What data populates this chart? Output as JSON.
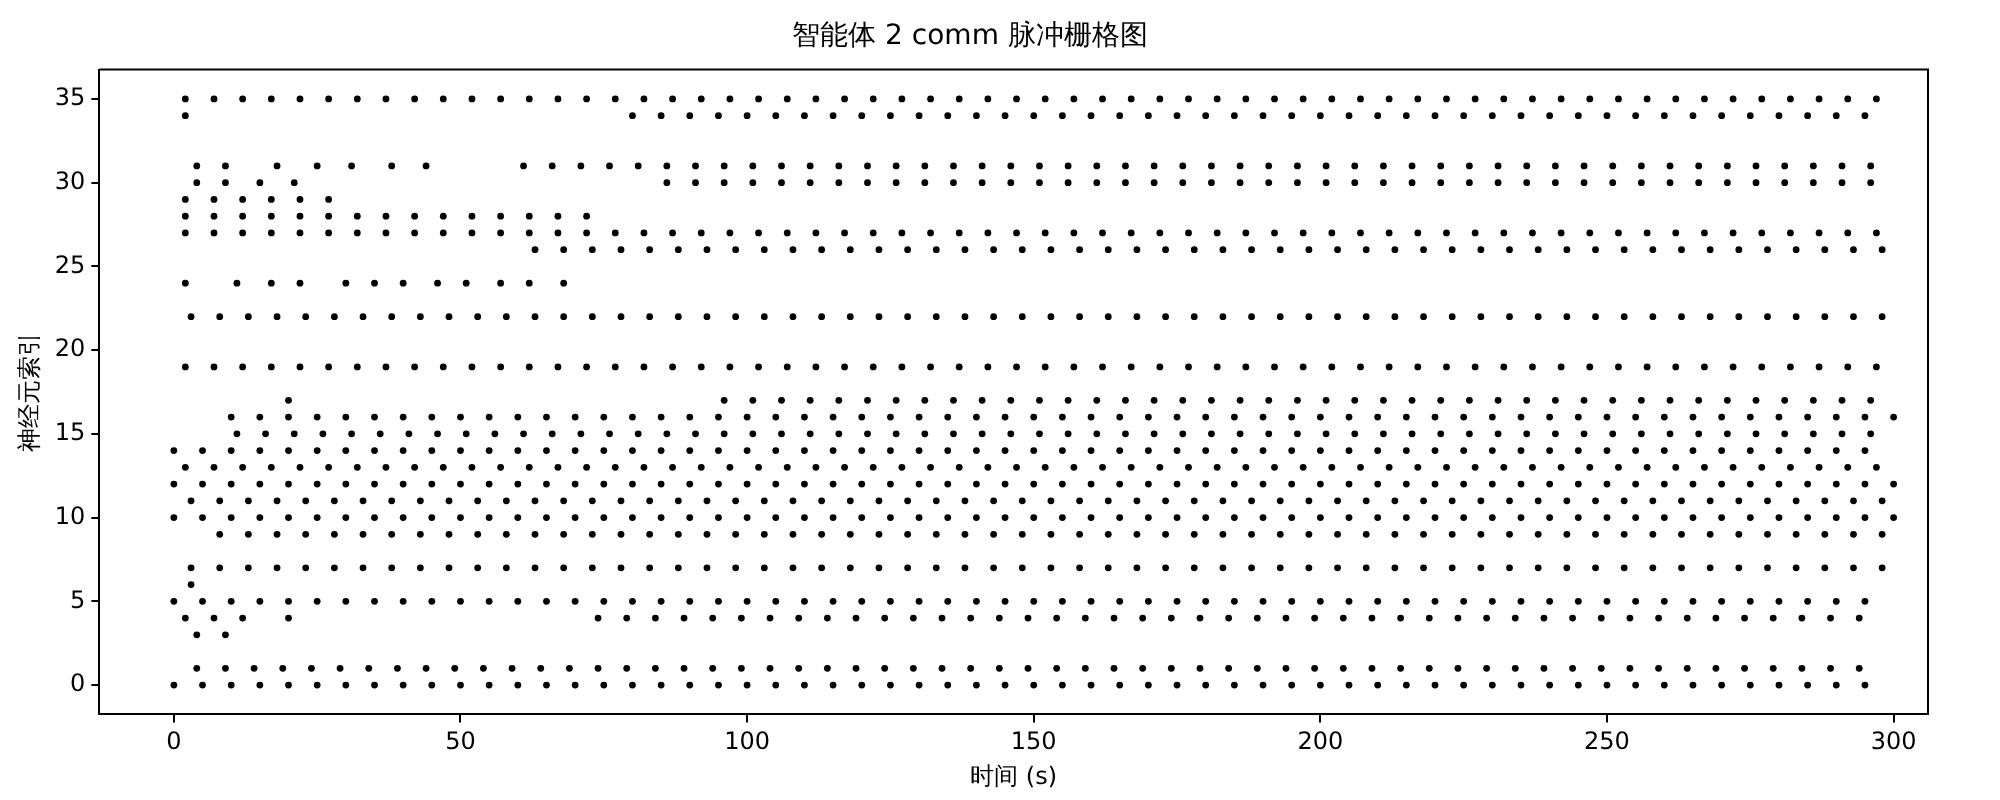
{
  "chart_data": {
    "type": "scatter",
    "title": "智能体 2 comm 脉冲栅格图",
    "xlabel": "时间 (s)",
    "ylabel": "神经元索引",
    "marker": "circle",
    "xlim": [
      -13,
      306
    ],
    "ylim": [
      -1.75,
      36.75
    ],
    "xticks": [
      0,
      50,
      100,
      150,
      200,
      250,
      300
    ],
    "yticks": [
      0,
      5,
      10,
      15,
      20,
      25,
      30,
      35
    ],
    "series": [
      {
        "color": "#000000",
        "x": [
          2,
          7,
          12,
          17,
          22,
          27,
          32,
          37,
          42,
          47,
          52,
          57,
          62,
          67,
          72,
          77,
          82,
          87,
          92,
          97,
          102,
          107,
          112,
          117,
          122,
          127,
          132,
          137,
          142,
          147,
          152,
          157,
          162,
          167,
          172,
          177,
          182,
          187,
          192,
          197,
          202,
          207,
          212,
          217,
          222,
          227,
          232,
          237,
          242,
          247,
          252,
          257,
          262,
          267,
          272,
          277,
          282,
          287,
          292,
          297
        ],
        "values": [
          35,
          35,
          35,
          35,
          35,
          35,
          35,
          35,
          35,
          35,
          35,
          35,
          35,
          35,
          35,
          35,
          35,
          35,
          35,
          35,
          35,
          35,
          35,
          35,
          35,
          35,
          35,
          35,
          35,
          35,
          35,
          35,
          35,
          35,
          35,
          35,
          35,
          35,
          35,
          35,
          35,
          35,
          35,
          35,
          35,
          35,
          35,
          35,
          35,
          35,
          35,
          35,
          35,
          35,
          35,
          35,
          35,
          35,
          35,
          35
        ]
      },
      {
        "color": "#000000",
        "x": [
          2,
          80,
          85,
          90,
          95,
          100,
          105,
          110,
          115,
          120,
          125,
          130,
          135,
          140,
          145,
          150,
          155,
          160,
          165,
          170,
          175,
          180,
          185,
          190,
          195,
          200,
          205,
          210,
          215,
          220,
          225,
          230,
          235,
          240,
          245,
          250,
          255,
          260,
          265,
          270,
          275,
          280,
          285,
          290,
          295
        ],
        "values": [
          34,
          34,
          34,
          34,
          34,
          34,
          34,
          34,
          34,
          34,
          34,
          34,
          34,
          34,
          34,
          34,
          34,
          34,
          34,
          34,
          34,
          34,
          34,
          34,
          34,
          34,
          34,
          34,
          34,
          34,
          34,
          34,
          34,
          34,
          34,
          34,
          34,
          34,
          34,
          34,
          34,
          34,
          34,
          34,
          34
        ]
      },
      {
        "color": "#000000",
        "x": [
          4,
          9,
          18,
          25,
          31,
          38,
          44,
          61,
          66,
          71,
          76,
          81,
          86,
          91,
          96,
          101,
          106,
          111,
          116,
          121,
          126,
          131,
          136,
          141,
          146,
          151,
          156,
          161,
          166,
          171,
          176,
          181,
          186,
          191,
          196,
          201,
          206,
          211,
          216,
          221,
          226,
          231,
          236,
          241,
          246,
          251,
          256,
          261,
          266,
          271,
          276,
          281,
          286,
          291,
          296
        ],
        "values": [
          31,
          31,
          31,
          31,
          31,
          31,
          31,
          31,
          31,
          31,
          31,
          31,
          31,
          31,
          31,
          31,
          31,
          31,
          31,
          31,
          31,
          31,
          31,
          31,
          31,
          31,
          31,
          31,
          31,
          31,
          31,
          31,
          31,
          31,
          31,
          31,
          31,
          31,
          31,
          31,
          31,
          31,
          31,
          31,
          31,
          31,
          31,
          31,
          31,
          31,
          31,
          31,
          31,
          31,
          31
        ]
      },
      {
        "color": "#000000",
        "x": [
          4,
          9,
          15,
          21,
          86,
          91,
          96,
          101,
          106,
          111,
          116,
          121,
          126,
          131,
          136,
          141,
          146,
          151,
          156,
          161,
          166,
          171,
          176,
          181,
          186,
          191,
          196,
          201,
          206,
          211,
          216,
          221,
          226,
          231,
          236,
          241,
          246,
          251,
          256,
          261,
          266,
          271,
          276,
          281,
          286,
          291,
          296
        ],
        "values": [
          30,
          30,
          30,
          30,
          30,
          30,
          30,
          30,
          30,
          30,
          30,
          30,
          30,
          30,
          30,
          30,
          30,
          30,
          30,
          30,
          30,
          30,
          30,
          30,
          30,
          30,
          30,
          30,
          30,
          30,
          30,
          30,
          30,
          30,
          30,
          30,
          30,
          30,
          30,
          30,
          30,
          30,
          30,
          30,
          30,
          30,
          30
        ]
      },
      {
        "color": "#000000",
        "x": [
          2,
          7,
          12,
          17,
          22,
          27
        ],
        "values": [
          29,
          29,
          29,
          29,
          29,
          29
        ]
      },
      {
        "color": "#000000",
        "x": [
          2,
          7,
          12,
          17,
          22,
          27,
          32,
          37,
          42,
          47,
          52,
          57,
          62,
          67,
          72
        ],
        "values": [
          28,
          28,
          28,
          28,
          28,
          28,
          28,
          28,
          28,
          28,
          28,
          28,
          28,
          28,
          28
        ]
      },
      {
        "color": "#000000",
        "x": [
          2,
          7,
          12,
          17,
          22,
          27,
          32,
          37,
          42,
          47,
          52,
          57,
          62,
          67,
          72,
          77,
          82,
          87,
          92,
          97,
          102,
          107,
          112,
          117,
          122,
          127,
          132,
          137,
          142,
          147,
          152,
          157,
          162,
          167,
          172,
          177,
          182,
          187,
          192,
          197,
          202,
          207,
          212,
          217,
          222,
          227,
          232,
          237,
          242,
          247,
          252,
          257,
          262,
          267,
          272,
          277,
          282,
          287,
          292,
          297
        ],
        "values": [
          27,
          27,
          27,
          27,
          27,
          27,
          27,
          27,
          27,
          27,
          27,
          27,
          27,
          27,
          27,
          27,
          27,
          27,
          27,
          27,
          27,
          27,
          27,
          27,
          27,
          27,
          27,
          27,
          27,
          27,
          27,
          27,
          27,
          27,
          27,
          27,
          27,
          27,
          27,
          27,
          27,
          27,
          27,
          27,
          27,
          27,
          27,
          27,
          27,
          27,
          27,
          27,
          27,
          27,
          27,
          27,
          27,
          27,
          27,
          27
        ]
      },
      {
        "color": "#000000",
        "x": [
          63,
          68,
          73,
          78,
          83,
          88,
          93,
          98,
          103,
          108,
          113,
          118,
          123,
          128,
          133,
          138,
          143,
          148,
          153,
          158,
          163,
          168,
          173,
          178,
          183,
          188,
          193,
          198,
          203,
          208,
          213,
          218,
          223,
          228,
          233,
          238,
          243,
          248,
          253,
          258,
          263,
          268,
          273,
          278,
          283,
          288,
          293,
          298
        ],
        "values": [
          26,
          26,
          26,
          26,
          26,
          26,
          26,
          26,
          26,
          26,
          26,
          26,
          26,
          26,
          26,
          26,
          26,
          26,
          26,
          26,
          26,
          26,
          26,
          26,
          26,
          26,
          26,
          26,
          26,
          26,
          26,
          26,
          26,
          26,
          26,
          26,
          26,
          26,
          26,
          26,
          26,
          26,
          26,
          26,
          26,
          26,
          26,
          26
        ]
      },
      {
        "color": "#000000",
        "x": [
          2,
          11,
          17,
          22,
          30,
          35,
          40,
          46,
          51,
          57,
          62,
          68
        ],
        "values": [
          24,
          24,
          24,
          24,
          24,
          24,
          24,
          24,
          24,
          24,
          24,
          24
        ]
      },
      {
        "color": "#000000",
        "x": [
          3,
          8,
          13,
          18,
          23,
          28,
          33,
          38,
          43,
          48,
          53,
          58,
          63,
          68,
          73,
          78,
          83,
          88,
          93,
          98,
          103,
          108,
          113,
          118,
          123,
          128,
          133,
          138,
          143,
          148,
          153,
          158,
          163,
          168,
          173,
          178,
          183,
          188,
          193,
          198,
          203,
          208,
          213,
          218,
          223,
          228,
          233,
          238,
          243,
          248,
          253,
          258,
          263,
          268,
          273,
          278,
          283,
          288,
          293,
          298
        ],
        "values": [
          22,
          22,
          22,
          22,
          22,
          22,
          22,
          22,
          22,
          22,
          22,
          22,
          22,
          22,
          22,
          22,
          22,
          22,
          22,
          22,
          22,
          22,
          22,
          22,
          22,
          22,
          22,
          22,
          22,
          22,
          22,
          22,
          22,
          22,
          22,
          22,
          22,
          22,
          22,
          22,
          22,
          22,
          22,
          22,
          22,
          22,
          22,
          22,
          22,
          22,
          22,
          22,
          22,
          22,
          22,
          22,
          22,
          22,
          22,
          22
        ]
      },
      {
        "color": "#000000",
        "x": [
          2,
          7,
          12,
          17,
          22,
          27,
          32,
          37,
          42,
          47,
          52,
          57,
          62,
          67,
          72,
          77,
          82,
          87,
          92,
          97,
          102,
          107,
          112,
          117,
          122,
          127,
          132,
          137,
          142,
          147,
          152,
          157,
          162,
          167,
          172,
          177,
          182,
          187,
          192,
          197,
          202,
          207,
          212,
          217,
          222,
          227,
          232,
          237,
          242,
          247,
          252,
          257,
          262,
          267,
          272,
          277,
          282,
          287,
          292,
          297
        ],
        "values": [
          19,
          19,
          19,
          19,
          19,
          19,
          19,
          19,
          19,
          19,
          19,
          19,
          19,
          19,
          19,
          19,
          19,
          19,
          19,
          19,
          19,
          19,
          19,
          19,
          19,
          19,
          19,
          19,
          19,
          19,
          19,
          19,
          19,
          19,
          19,
          19,
          19,
          19,
          19,
          19,
          19,
          19,
          19,
          19,
          19,
          19,
          19,
          19,
          19,
          19,
          19,
          19,
          19,
          19,
          19,
          19,
          19,
          19,
          19,
          19
        ]
      },
      {
        "color": "#000000",
        "x": [
          20,
          96,
          101,
          106,
          111,
          116,
          121,
          126,
          131,
          136,
          141,
          146,
          151,
          156,
          161,
          166,
          171,
          176,
          181,
          186,
          191,
          196,
          201,
          206,
          211,
          216,
          221,
          226,
          231,
          236,
          241,
          246,
          251,
          256,
          261,
          266,
          271,
          276,
          281,
          286,
          291,
          296
        ],
        "values": [
          17,
          17,
          17,
          17,
          17,
          17,
          17,
          17,
          17,
          17,
          17,
          17,
          17,
          17,
          17,
          17,
          17,
          17,
          17,
          17,
          17,
          17,
          17,
          17,
          17,
          17,
          17,
          17,
          17,
          17,
          17,
          17,
          17,
          17,
          17,
          17,
          17,
          17,
          17,
          17,
          17,
          17
        ]
      },
      {
        "color": "#000000",
        "x": [
          10,
          15,
          20,
          25,
          30,
          35,
          40,
          45,
          50,
          55,
          60,
          65,
          70,
          75,
          80,
          85,
          90,
          95,
          100,
          105,
          110,
          115,
          120,
          125,
          130,
          135,
          140,
          145,
          150,
          155,
          160,
          165,
          170,
          175,
          180,
          185,
          190,
          195,
          200,
          205,
          210,
          215,
          220,
          225,
          230,
          235,
          240,
          245,
          250,
          255,
          260,
          265,
          270,
          275,
          280,
          285,
          290,
          295,
          300
        ],
        "values": [
          16,
          16,
          16,
          16,
          16,
          16,
          16,
          16,
          16,
          16,
          16,
          16,
          16,
          16,
          16,
          16,
          16,
          16,
          16,
          16,
          16,
          16,
          16,
          16,
          16,
          16,
          16,
          16,
          16,
          16,
          16,
          16,
          16,
          16,
          16,
          16,
          16,
          16,
          16,
          16,
          16,
          16,
          16,
          16,
          16,
          16,
          16,
          16,
          16,
          16,
          16,
          16,
          16,
          16,
          16,
          16,
          16,
          16,
          16
        ]
      },
      {
        "color": "#000000",
        "x": [
          11,
          16,
          21,
          26,
          31,
          36,
          41,
          46,
          51,
          56,
          61,
          66,
          71,
          76,
          81,
          86,
          91,
          96,
          101,
          106,
          111,
          116,
          121,
          126,
          131,
          136,
          141,
          146,
          151,
          156,
          161,
          166,
          171,
          176,
          181,
          186,
          191,
          196,
          201,
          206,
          211,
          216,
          221,
          226,
          231,
          236,
          241,
          246,
          251,
          256,
          261,
          266,
          271,
          276,
          281,
          286,
          291,
          296
        ],
        "values": [
          15,
          15,
          15,
          15,
          15,
          15,
          15,
          15,
          15,
          15,
          15,
          15,
          15,
          15,
          15,
          15,
          15,
          15,
          15,
          15,
          15,
          15,
          15,
          15,
          15,
          15,
          15,
          15,
          15,
          15,
          15,
          15,
          15,
          15,
          15,
          15,
          15,
          15,
          15,
          15,
          15,
          15,
          15,
          15,
          15,
          15,
          15,
          15,
          15,
          15,
          15,
          15,
          15,
          15,
          15,
          15,
          15,
          15
        ]
      },
      {
        "color": "#000000",
        "x": [
          0,
          5,
          10,
          15,
          20,
          25,
          30,
          35,
          40,
          45,
          50,
          55,
          60,
          65,
          70,
          75,
          80,
          85,
          90,
          95,
          100,
          105,
          110,
          115,
          120,
          125,
          130,
          135,
          140,
          145,
          150,
          155,
          160,
          165,
          170,
          175,
          180,
          185,
          190,
          195,
          200,
          205,
          210,
          215,
          220,
          225,
          230,
          235,
          240,
          245,
          250,
          255,
          260,
          265,
          270,
          275,
          280,
          285,
          290,
          295
        ],
        "values": [
          14,
          14,
          14,
          14,
          14,
          14,
          14,
          14,
          14,
          14,
          14,
          14,
          14,
          14,
          14,
          14,
          14,
          14,
          14,
          14,
          14,
          14,
          14,
          14,
          14,
          14,
          14,
          14,
          14,
          14,
          14,
          14,
          14,
          14,
          14,
          14,
          14,
          14,
          14,
          14,
          14,
          14,
          14,
          14,
          14,
          14,
          14,
          14,
          14,
          14,
          14,
          14,
          14,
          14,
          14,
          14,
          14,
          14,
          14,
          14
        ]
      },
      {
        "color": "#000000",
        "x": [
          2,
          7,
          12,
          17,
          22,
          27,
          32,
          37,
          42,
          47,
          52,
          57,
          62,
          67,
          72,
          77,
          82,
          87,
          92,
          97,
          102,
          107,
          112,
          117,
          122,
          127,
          132,
          137,
          142,
          147,
          152,
          157,
          162,
          167,
          172,
          177,
          182,
          187,
          192,
          197,
          202,
          207,
          212,
          217,
          222,
          227,
          232,
          237,
          242,
          247,
          252,
          257,
          262,
          267,
          272,
          277,
          282,
          287,
          292,
          297
        ],
        "values": [
          13,
          13,
          13,
          13,
          13,
          13,
          13,
          13,
          13,
          13,
          13,
          13,
          13,
          13,
          13,
          13,
          13,
          13,
          13,
          13,
          13,
          13,
          13,
          13,
          13,
          13,
          13,
          13,
          13,
          13,
          13,
          13,
          13,
          13,
          13,
          13,
          13,
          13,
          13,
          13,
          13,
          13,
          13,
          13,
          13,
          13,
          13,
          13,
          13,
          13,
          13,
          13,
          13,
          13,
          13,
          13,
          13,
          13,
          13,
          13
        ]
      },
      {
        "color": "#000000",
        "x": [
          0,
          5,
          10,
          15,
          20,
          25,
          30,
          35,
          40,
          45,
          50,
          55,
          60,
          65,
          70,
          75,
          80,
          85,
          90,
          95,
          100,
          105,
          110,
          115,
          120,
          125,
          130,
          135,
          140,
          145,
          150,
          155,
          160,
          165,
          170,
          175,
          180,
          185,
          190,
          195,
          200,
          205,
          210,
          215,
          220,
          225,
          230,
          235,
          240,
          245,
          250,
          255,
          260,
          265,
          270,
          275,
          280,
          285,
          290,
          295,
          300
        ],
        "values": [
          12,
          12,
          12,
          12,
          12,
          12,
          12,
          12,
          12,
          12,
          12,
          12,
          12,
          12,
          12,
          12,
          12,
          12,
          12,
          12,
          12,
          12,
          12,
          12,
          12,
          12,
          12,
          12,
          12,
          12,
          12,
          12,
          12,
          12,
          12,
          12,
          12,
          12,
          12,
          12,
          12,
          12,
          12,
          12,
          12,
          12,
          12,
          12,
          12,
          12,
          12,
          12,
          12,
          12,
          12,
          12,
          12,
          12,
          12,
          12,
          12
        ]
      },
      {
        "color": "#000000",
        "x": [
          3,
          8,
          13,
          18,
          23,
          28,
          33,
          38,
          43,
          48,
          53,
          58,
          63,
          68,
          73,
          78,
          83,
          88,
          93,
          98,
          103,
          108,
          113,
          118,
          123,
          128,
          133,
          138,
          143,
          148,
          153,
          158,
          163,
          168,
          173,
          178,
          183,
          188,
          193,
          198,
          203,
          208,
          213,
          218,
          223,
          228,
          233,
          238,
          243,
          248,
          253,
          258,
          263,
          268,
          273,
          278,
          283,
          288,
          293,
          298
        ],
        "values": [
          11,
          11,
          11,
          11,
          11,
          11,
          11,
          11,
          11,
          11,
          11,
          11,
          11,
          11,
          11,
          11,
          11,
          11,
          11,
          11,
          11,
          11,
          11,
          11,
          11,
          11,
          11,
          11,
          11,
          11,
          11,
          11,
          11,
          11,
          11,
          11,
          11,
          11,
          11,
          11,
          11,
          11,
          11,
          11,
          11,
          11,
          11,
          11,
          11,
          11,
          11,
          11,
          11,
          11,
          11,
          11,
          11,
          11,
          11,
          11
        ]
      },
      {
        "color": "#000000",
        "x": [
          0,
          5,
          10,
          15,
          20,
          25,
          30,
          35,
          40,
          45,
          50,
          55,
          60,
          65,
          70,
          75,
          80,
          85,
          90,
          95,
          100,
          105,
          110,
          115,
          120,
          125,
          130,
          135,
          140,
          145,
          150,
          155,
          160,
          165,
          170,
          175,
          180,
          185,
          190,
          195,
          200,
          205,
          210,
          215,
          220,
          225,
          230,
          235,
          240,
          245,
          250,
          255,
          260,
          265,
          270,
          275,
          280,
          285,
          290,
          295,
          300
        ],
        "values": [
          10,
          10,
          10,
          10,
          10,
          10,
          10,
          10,
          10,
          10,
          10,
          10,
          10,
          10,
          10,
          10,
          10,
          10,
          10,
          10,
          10,
          10,
          10,
          10,
          10,
          10,
          10,
          10,
          10,
          10,
          10,
          10,
          10,
          10,
          10,
          10,
          10,
          10,
          10,
          10,
          10,
          10,
          10,
          10,
          10,
          10,
          10,
          10,
          10,
          10,
          10,
          10,
          10,
          10,
          10,
          10,
          10,
          10,
          10,
          10,
          10
        ]
      },
      {
        "color": "#000000",
        "x": [
          8,
          13,
          18,
          23,
          28,
          33,
          38,
          43,
          48,
          53,
          58,
          63,
          68,
          73,
          78,
          83,
          88,
          93,
          98,
          103,
          108,
          113,
          118,
          123,
          128,
          133,
          138,
          143,
          148,
          153,
          158,
          163,
          168,
          173,
          178,
          183,
          188,
          193,
          198,
          203,
          208,
          213,
          218,
          223,
          228,
          233,
          238,
          243,
          248,
          253,
          258,
          263,
          268,
          273,
          278,
          283,
          288,
          293,
          298
        ],
        "values": [
          9,
          9,
          9,
          9,
          9,
          9,
          9,
          9,
          9,
          9,
          9,
          9,
          9,
          9,
          9,
          9,
          9,
          9,
          9,
          9,
          9,
          9,
          9,
          9,
          9,
          9,
          9,
          9,
          9,
          9,
          9,
          9,
          9,
          9,
          9,
          9,
          9,
          9,
          9,
          9,
          9,
          9,
          9,
          9,
          9,
          9,
          9,
          9,
          9,
          9,
          9,
          9,
          9,
          9,
          9,
          9,
          9,
          9,
          9
        ]
      },
      {
        "color": "#000000",
        "x": [
          3,
          8,
          13,
          18,
          23,
          28,
          33,
          38,
          43,
          48,
          53,
          58,
          63,
          68,
          73,
          78,
          83,
          88,
          93,
          98,
          103,
          108,
          113,
          118,
          123,
          128,
          133,
          138,
          143,
          148,
          153,
          158,
          163,
          168,
          173,
          178,
          183,
          188,
          193,
          198,
          203,
          208,
          213,
          218,
          223,
          228,
          233,
          238,
          243,
          248,
          253,
          258,
          263,
          268,
          273,
          278,
          283,
          288,
          293,
          298
        ],
        "values": [
          7,
          7,
          7,
          7,
          7,
          7,
          7,
          7,
          7,
          7,
          7,
          7,
          7,
          7,
          7,
          7,
          7,
          7,
          7,
          7,
          7,
          7,
          7,
          7,
          7,
          7,
          7,
          7,
          7,
          7,
          7,
          7,
          7,
          7,
          7,
          7,
          7,
          7,
          7,
          7,
          7,
          7,
          7,
          7,
          7,
          7,
          7,
          7,
          7,
          7,
          7,
          7,
          7,
          7,
          7,
          7,
          7,
          7,
          7,
          7
        ]
      },
      {
        "color": "#000000",
        "x": [
          3
        ],
        "values": [
          6
        ]
      },
      {
        "color": "#000000",
        "x": [
          0,
          5,
          10,
          15,
          20,
          25,
          30,
          35,
          40,
          45,
          50,
          55,
          60,
          65,
          70,
          75,
          80,
          85,
          90,
          95,
          100,
          105,
          110,
          115,
          120,
          125,
          130,
          135,
          140,
          145,
          150,
          155,
          160,
          165,
          170,
          175,
          180,
          185,
          190,
          195,
          200,
          205,
          210,
          215,
          220,
          225,
          230,
          235,
          240,
          245,
          250,
          255,
          260,
          265,
          270,
          275,
          280,
          285,
          290,
          295
        ],
        "values": [
          5,
          5,
          5,
          5,
          5,
          5,
          5,
          5,
          5,
          5,
          5,
          5,
          5,
          5,
          5,
          5,
          5,
          5,
          5,
          5,
          5,
          5,
          5,
          5,
          5,
          5,
          5,
          5,
          5,
          5,
          5,
          5,
          5,
          5,
          5,
          5,
          5,
          5,
          5,
          5,
          5,
          5,
          5,
          5,
          5,
          5,
          5,
          5,
          5,
          5,
          5,
          5,
          5,
          5,
          5,
          5,
          5,
          5,
          5,
          5
        ]
      },
      {
        "color": "#000000",
        "x": [
          2,
          7,
          12,
          20,
          74,
          79,
          84,
          89,
          94,
          99,
          104,
          109,
          114,
          119,
          124,
          129,
          134,
          139,
          144,
          149,
          154,
          159,
          164,
          169,
          174,
          179,
          184,
          189,
          194,
          199,
          204,
          209,
          214,
          219,
          224,
          229,
          234,
          239,
          244,
          249,
          254,
          259,
          264,
          269,
          274,
          279,
          284,
          289,
          294
        ],
        "values": [
          4,
          4,
          4,
          4,
          4,
          4,
          4,
          4,
          4,
          4,
          4,
          4,
          4,
          4,
          4,
          4,
          4,
          4,
          4,
          4,
          4,
          4,
          4,
          4,
          4,
          4,
          4,
          4,
          4,
          4,
          4,
          4,
          4,
          4,
          4,
          4,
          4,
          4,
          4,
          4,
          4,
          4,
          4,
          4,
          4,
          4,
          4,
          4,
          4
        ]
      },
      {
        "color": "#000000",
        "x": [
          4,
          9
        ],
        "values": [
          3,
          3
        ]
      },
      {
        "color": "#000000",
        "x": [
          4,
          9,
          14,
          19,
          24,
          29,
          34,
          39,
          44,
          49,
          54,
          59,
          64,
          69,
          74,
          79,
          84,
          89,
          94,
          99,
          104,
          109,
          114,
          119,
          124,
          129,
          134,
          139,
          144,
          149,
          154,
          159,
          164,
          169,
          174,
          179,
          184,
          189,
          194,
          199,
          204,
          209,
          214,
          219,
          224,
          229,
          234,
          239,
          244,
          249,
          254,
          259,
          264,
          269,
          274,
          279,
          284,
          289,
          294
        ],
        "values": [
          1,
          1,
          1,
          1,
          1,
          1,
          1,
          1,
          1,
          1,
          1,
          1,
          1,
          1,
          1,
          1,
          1,
          1,
          1,
          1,
          1,
          1,
          1,
          1,
          1,
          1,
          1,
          1,
          1,
          1,
          1,
          1,
          1,
          1,
          1,
          1,
          1,
          1,
          1,
          1,
          1,
          1,
          1,
          1,
          1,
          1,
          1,
          1,
          1,
          1,
          1,
          1,
          1,
          1,
          1,
          1,
          1,
          1,
          1
        ]
      },
      {
        "color": "#000000",
        "x": [
          0,
          5,
          10,
          15,
          20,
          25,
          30,
          35,
          40,
          45,
          50,
          55,
          60,
          65,
          70,
          75,
          80,
          85,
          90,
          95,
          100,
          105,
          110,
          115,
          120,
          125,
          130,
          135,
          140,
          145,
          150,
          155,
          160,
          165,
          170,
          175,
          180,
          185,
          190,
          195,
          200,
          205,
          210,
          215,
          220,
          225,
          230,
          235,
          240,
          245,
          250,
          255,
          260,
          265,
          270,
          275,
          280,
          285,
          290,
          295
        ],
        "values": [
          0,
          0,
          0,
          0,
          0,
          0,
          0,
          0,
          0,
          0,
          0,
          0,
          0,
          0,
          0,
          0,
          0,
          0,
          0,
          0,
          0,
          0,
          0,
          0,
          0,
          0,
          0,
          0,
          0,
          0,
          0,
          0,
          0,
          0,
          0,
          0,
          0,
          0,
          0,
          0,
          0,
          0,
          0,
          0,
          0,
          0,
          0,
          0,
          0,
          0,
          0,
          0,
          0,
          0,
          0,
          0,
          0,
          0,
          0,
          0
        ]
      }
    ]
  }
}
